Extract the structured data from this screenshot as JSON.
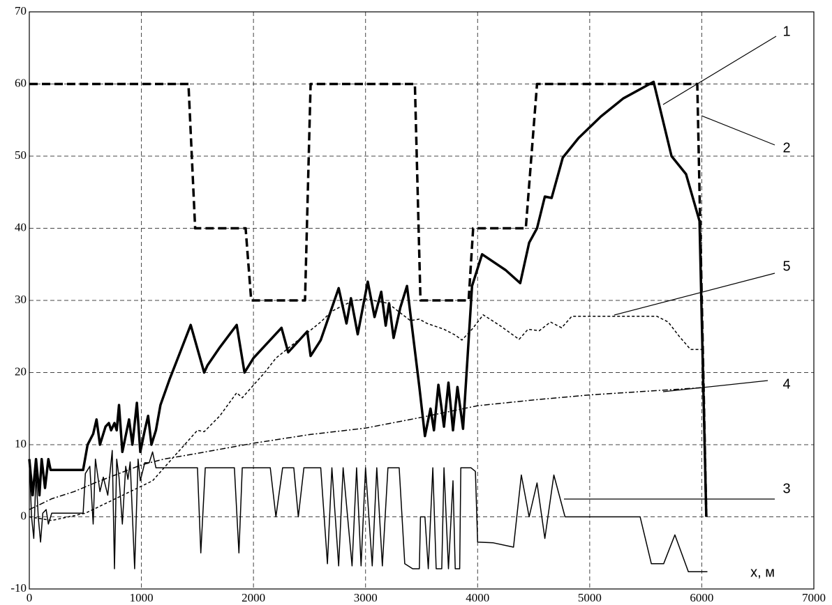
{
  "chart_data": {
    "type": "line",
    "x_label": "x, м",
    "xlim": [
      0,
      7000
    ],
    "xticks": [
      0,
      1000,
      2000,
      3000,
      4000,
      5000,
      6000,
      7000
    ],
    "ylim": [
      -10,
      70
    ],
    "yticks": [
      -10,
      0,
      10,
      20,
      30,
      40,
      50,
      60,
      70
    ],
    "grid": true,
    "series": [
      {
        "name": "1",
        "color": "#000000",
        "style": "bold",
        "x": [
          0,
          30,
          60,
          90,
          110,
          140,
          170,
          190,
          300,
          480,
          520,
          570,
          600,
          630,
          680,
          710,
          730,
          760,
          780,
          800,
          830,
          870,
          890,
          920,
          960,
          990,
          1030,
          1060,
          1090,
          1130,
          1170,
          1250,
          1350,
          1440,
          1560,
          1590,
          1700,
          1850,
          1920,
          2000,
          2250,
          2310,
          2480,
          2510,
          2580,
          2600,
          2760,
          2830,
          2870,
          2930,
          3020,
          3080,
          3140,
          3180,
          3210,
          3250,
          3310,
          3370,
          3480,
          3530,
          3580,
          3610,
          3650,
          3700,
          3740,
          3780,
          3820,
          3870,
          3950,
          4040,
          4250,
          4380,
          4460,
          4530,
          4600,
          4660,
          4760,
          4900,
          5100,
          5300,
          5570,
          5730,
          5860,
          5980,
          6040
        ],
        "values": [
          8,
          3,
          8,
          3,
          8,
          4,
          8,
          6.5,
          6.5,
          6.5,
          10,
          11.5,
          13.5,
          10,
          12.5,
          13,
          12,
          13,
          12,
          15.5,
          9,
          12,
          13.5,
          10,
          15.8,
          9,
          12,
          14,
          10,
          12,
          15.5,
          19,
          23,
          26.6,
          20,
          21,
          23.5,
          26.6,
          20,
          22,
          26.2,
          22.8,
          25.7,
          22.3,
          24,
          24.5,
          31.7,
          26.8,
          30.3,
          25.3,
          32.6,
          27.7,
          31.2,
          26.5,
          29.6,
          24.8,
          29,
          32,
          18,
          11.2,
          15,
          12,
          18.3,
          12.5,
          18.6,
          12,
          18,
          12.2,
          32,
          36.4,
          34.2,
          32.4,
          38,
          40,
          44.4,
          44.2,
          49.8,
          52.5,
          55.5,
          58,
          60.3,
          50,
          47.5,
          41,
          0
        ]
      },
      {
        "name": "2",
        "color": "#000000",
        "style": "bold-dashed",
        "x": [
          0,
          1420,
          1480,
          1930,
          1980,
          2460,
          2510,
          3440,
          3490,
          3920,
          3960,
          4430,
          4530,
          5960,
          6040
        ],
        "values": [
          60,
          60,
          40,
          40,
          30,
          30,
          60,
          60,
          30,
          30,
          40,
          40,
          60,
          60,
          0
        ]
      },
      {
        "name": "3",
        "color": "#000000",
        "style": "thin",
        "x": [
          0,
          20,
          40,
          60,
          80,
          100,
          120,
          150,
          170,
          200,
          480,
          500,
          540,
          570,
          590,
          630,
          660,
          700,
          740,
          760,
          780,
          800,
          830,
          860,
          880,
          900,
          940,
          970,
          990,
          1030,
          1070,
          1100,
          1130,
          1500,
          1530,
          1570,
          1830,
          1870,
          1900,
          2150,
          2200,
          2260,
          2360,
          2400,
          2450,
          2600,
          2660,
          2700,
          2760,
          2800,
          2880,
          2920,
          2960,
          3000,
          3060,
          3100,
          3150,
          3200,
          3300,
          3350,
          3420,
          3480,
          3490,
          3530,
          3560,
          3600,
          3630,
          3680,
          3700,
          3740,
          3780,
          3800,
          3840,
          3850,
          3940,
          3980,
          4000,
          4140,
          4320,
          4390,
          4460,
          4530,
          4600,
          4680,
          4780,
          5450,
          5550,
          5660,
          5760,
          5880,
          6050
        ],
        "values": [
          8,
          0,
          -3,
          6,
          0,
          -3.5,
          0.5,
          1,
          -1,
          0.5,
          0.5,
          6,
          7,
          -1,
          8,
          3.5,
          5.5,
          3,
          9.2,
          -7.2,
          8,
          5.5,
          -1,
          7,
          5.2,
          7.6,
          -7.2,
          8,
          5,
          7.5,
          7.5,
          9,
          6.8,
          6.8,
          -5,
          6.8,
          6.8,
          -5,
          6.8,
          6.8,
          0,
          6.8,
          6.8,
          0,
          6.8,
          6.8,
          -6.5,
          6.8,
          -6.8,
          6.8,
          -6.8,
          6.8,
          -6.8,
          6.8,
          -6.8,
          6.8,
          -6.8,
          6.8,
          6.8,
          -6.5,
          -7.2,
          -7.2,
          0,
          0,
          -7.2,
          6.8,
          -7.2,
          -7.2,
          6.8,
          -7.2,
          5,
          -7.2,
          -7.2,
          6.8,
          6.8,
          6.3,
          -3.5,
          -3.6,
          -4.2,
          5.8,
          0,
          4.7,
          -3,
          5.8,
          0,
          0,
          -6.5,
          -6.5,
          -2.5,
          -7.6,
          -7.6
        ]
      },
      {
        "name": "4",
        "color": "#000000",
        "style": "dash-dot",
        "x": [
          0,
          200,
          400,
          600,
          800,
          1000,
          1200,
          1500,
          2000,
          2500,
          3000,
          3500,
          4000,
          4500,
          5000,
          5500,
          6000
        ],
        "values": [
          1,
          2.5,
          3.5,
          4.8,
          6,
          7.2,
          8,
          8.8,
          10.2,
          11.4,
          12.3,
          13.8,
          15.4,
          16.2,
          16.9,
          17.4,
          17.9
        ]
      },
      {
        "name": "5",
        "color": "#000000",
        "style": "dashed",
        "x": [
          0,
          200,
          500,
          700,
          900,
          1100,
          1300,
          1500,
          1560,
          1700,
          1850,
          1900,
          2100,
          2200,
          2400,
          2600,
          2700,
          2800,
          2900,
          3000,
          3200,
          3400,
          3480,
          3550,
          3700,
          3800,
          3860,
          3950,
          4050,
          4200,
          4370,
          4450,
          4550,
          4650,
          4750,
          4840,
          5000,
          5500,
          5600,
          5700,
          5800,
          5900,
          6000
        ],
        "values": [
          0,
          -0.5,
          0.5,
          2,
          3.5,
          5,
          8.5,
          12,
          11.8,
          14,
          17.2,
          16.5,
          20,
          22,
          24.5,
          27,
          28.5,
          29.3,
          30,
          30.2,
          29.6,
          27.2,
          27.4,
          26.8,
          26,
          25.2,
          24.5,
          26,
          28,
          26.5,
          24.6,
          26,
          25.8,
          27,
          26.2,
          27.8,
          27.8,
          27.8,
          27.8,
          27,
          25,
          23.2,
          23.2
        ]
      }
    ]
  }
}
